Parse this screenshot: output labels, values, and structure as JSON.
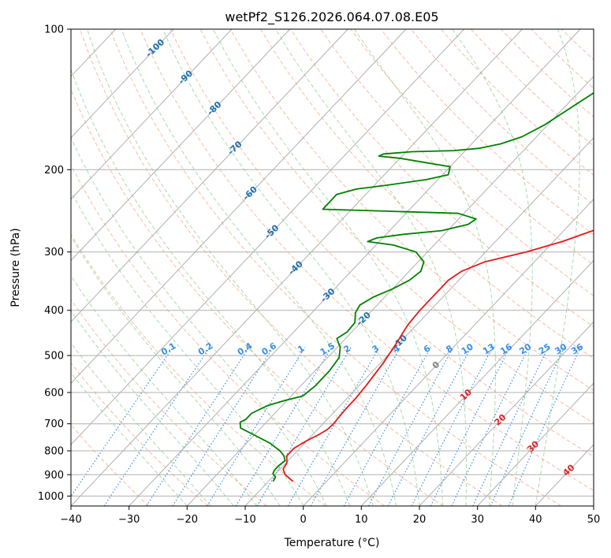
{
  "chart_data": {
    "type": "line",
    "title": "wetPf2_S126.2026.064.07.08.E05",
    "xlabel": "Temperature (°C)",
    "ylabel": "Pressure (hPa)",
    "xlim": [
      -40,
      50
    ],
    "ylim": [
      1050,
      100
    ],
    "y_scale": "log",
    "grid": true,
    "x_ticks": [
      -40,
      -30,
      -20,
      -10,
      0,
      10,
      20,
      30,
      40,
      50
    ],
    "y_ticks": [
      100,
      200,
      300,
      400,
      500,
      600,
      700,
      800,
      900,
      1000
    ],
    "colors": {
      "temperature": "#e41a1c",
      "dewpoint": "#008000",
      "isobar": "#b0b0b0",
      "isotherm": "#b0b0b0",
      "dry_adiabat": "#f4a582",
      "moist_adiabat": "#66bb66",
      "mixing_ratio": "#3a8ee6",
      "isotherm_label": "#1f6fb0",
      "positive_isotherm_label": "#d62728",
      "zero_isotherm_label": "#808080"
    },
    "isotherm_labels": [
      {
        "text": "-100",
        "t": -100,
        "p": 110
      },
      {
        "text": "-90",
        "t": -90,
        "p": 127
      },
      {
        "text": "-80",
        "t": -80,
        "p": 148
      },
      {
        "text": "-70",
        "t": -70,
        "p": 180
      },
      {
        "text": "-60",
        "t": -60,
        "p": 225
      },
      {
        "text": "-50",
        "t": -50,
        "p": 272
      },
      {
        "text": "-40",
        "t": -40,
        "p": 325
      },
      {
        "text": "-30",
        "t": -30,
        "p": 372
      },
      {
        "text": "-20",
        "t": -20,
        "p": 418
      },
      {
        "text": "-10",
        "t": -10,
        "p": 468
      },
      {
        "text": "0",
        "t": 0,
        "p": 525
      },
      {
        "text": "10",
        "t": 10,
        "p": 608
      },
      {
        "text": "20",
        "t": 20,
        "p": 688
      },
      {
        "text": "30",
        "t": 30,
        "p": 785
      },
      {
        "text": "40",
        "t": 40,
        "p": 882
      }
    ],
    "mixing_ratio_labels": [
      "0.1",
      "0.2",
      "0.4",
      "0.6",
      "1",
      "1.5",
      "2",
      "3",
      "4",
      "6",
      "8",
      "10",
      "13",
      "16",
      "20",
      "25",
      "30",
      "36"
    ],
    "mixing_ratio_label_pressure": 490,
    "series": [
      {
        "name": "",
        "role": "temperature",
        "points": [
          [
            -5.8,
            930
          ],
          [
            -8.2,
            900
          ],
          [
            -9.5,
            875
          ],
          [
            -9.8,
            850
          ],
          [
            -11.0,
            820
          ],
          [
            -11.0,
            790
          ],
          [
            -10.0,
            760
          ],
          [
            -9.0,
            740
          ],
          [
            -8.3,
            720
          ],
          [
            -8.2,
            700
          ],
          [
            -8.5,
            650
          ],
          [
            -8.5,
            620
          ],
          [
            -8.8,
            580
          ],
          [
            -9.5,
            520
          ],
          [
            -10.5,
            470
          ],
          [
            -11.5,
            430
          ],
          [
            -11.8,
            400
          ],
          [
            -11.8,
            370
          ],
          [
            -11.8,
            345
          ],
          [
            -11.0,
            330
          ],
          [
            -8.5,
            315
          ],
          [
            -3.0,
            300
          ],
          [
            1.5,
            285
          ],
          [
            5.0,
            270
          ],
          [
            10.0,
            250
          ],
          [
            13.0,
            235
          ],
          [
            14.0,
            225
          ],
          [
            15.0,
            212
          ],
          [
            15.5,
            200
          ],
          [
            16.5,
            180
          ],
          [
            18.5,
            160
          ],
          [
            20.5,
            145
          ],
          [
            22.0,
            130
          ],
          [
            24.0,
            118
          ],
          [
            25.5,
            108
          ],
          [
            26.5,
            100
          ]
        ]
      },
      {
        "name": "",
        "role": "dewpoint",
        "points": [
          [
            -9.2,
            930
          ],
          [
            -9.5,
            910
          ],
          [
            -10.5,
            895
          ],
          [
            -10.8,
            880
          ],
          [
            -10.8,
            860
          ],
          [
            -10.5,
            840
          ],
          [
            -11.5,
            820
          ],
          [
            -13.0,
            800
          ],
          [
            -16.0,
            770
          ],
          [
            -20.0,
            740
          ],
          [
            -23.5,
            715
          ],
          [
            -24.5,
            695
          ],
          [
            -24.0,
            685
          ],
          [
            -24.0,
            665
          ],
          [
            -22.5,
            640
          ],
          [
            -20.5,
            625
          ],
          [
            -18.0,
            610
          ],
          [
            -17.5,
            580
          ],
          [
            -17.5,
            540
          ],
          [
            -18.0,
            505
          ],
          [
            -19.5,
            480
          ],
          [
            -21.5,
            460
          ],
          [
            -20.8,
            445
          ],
          [
            -21.0,
            425
          ],
          [
            -22.5,
            405
          ],
          [
            -23.0,
            390
          ],
          [
            -22.0,
            375
          ],
          [
            -20.0,
            360
          ],
          [
            -18.5,
            345
          ],
          [
            -18.0,
            330
          ],
          [
            -19.0,
            315
          ],
          [
            -22.0,
            300
          ],
          [
            -27.0,
            290
          ],
          [
            -32.0,
            285
          ],
          [
            -31.0,
            280
          ],
          [
            -27.0,
            275
          ],
          [
            -21.0,
            270
          ],
          [
            -17.5,
            262
          ],
          [
            -17.0,
            255
          ],
          [
            -21.0,
            248
          ],
          [
            -35.0,
            245
          ],
          [
            -45.0,
            243
          ],
          [
            -45.0,
            238
          ],
          [
            -45.0,
            232
          ],
          [
            -45.0,
            226
          ],
          [
            -42.5,
            220
          ],
          [
            -38.0,
            216
          ],
          [
            -32.0,
            210
          ],
          [
            -29.0,
            205
          ],
          [
            -30.0,
            197
          ],
          [
            -35.0,
            193
          ],
          [
            -40.0,
            189
          ],
          [
            -44.0,
            187
          ],
          [
            -43.5,
            185
          ],
          [
            -39.0,
            183
          ],
          [
            -32.0,
            182
          ],
          [
            -28.0,
            180
          ],
          [
            -25.0,
            176
          ],
          [
            -22.5,
            170
          ],
          [
            -20.5,
            160
          ],
          [
            -18.5,
            145
          ],
          [
            -17.0,
            135
          ],
          [
            -15.0,
            125
          ],
          [
            -13.0,
            118
          ],
          [
            -10.0,
            110
          ],
          [
            -7.5,
            104
          ],
          [
            -6.0,
            100
          ]
        ]
      }
    ]
  }
}
